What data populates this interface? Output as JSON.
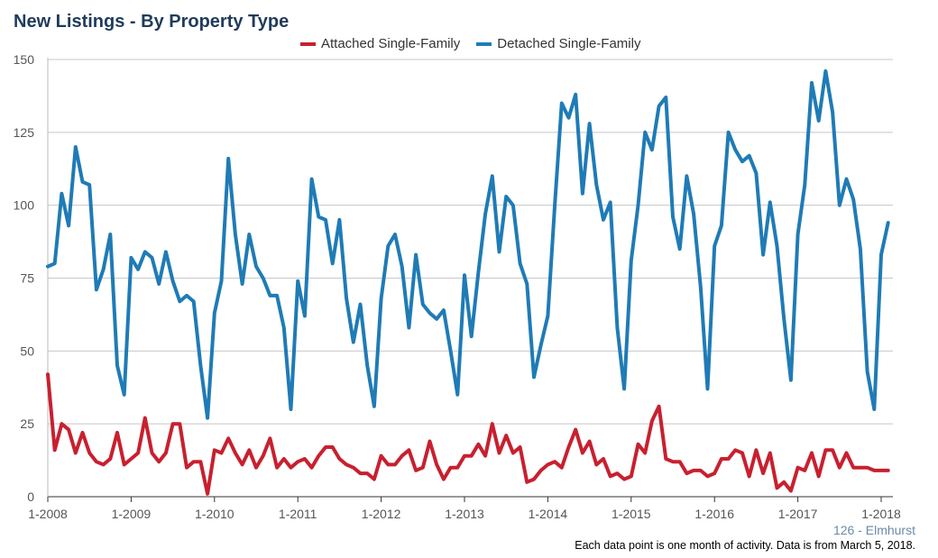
{
  "chart_data": {
    "type": "line",
    "title": "New Listings - By Property Type",
    "ylim": [
      0,
      150
    ],
    "yticks": [
      0,
      25,
      50,
      75,
      100,
      125,
      150
    ],
    "x_start": "1-2008",
    "x_ticks": [
      "1-2008",
      "1-2009",
      "1-2010",
      "1-2011",
      "1-2012",
      "1-2013",
      "1-2014",
      "1-2015",
      "1-2016",
      "1-2017",
      "1-2018"
    ],
    "grid": true,
    "legend_position": "top-center",
    "series": [
      {
        "name": "Attached Single-Family",
        "color": "#c8202f",
        "values": [
          42,
          16,
          25,
          23,
          15,
          22,
          15,
          12,
          11,
          13,
          22,
          11,
          13,
          15,
          27,
          15,
          12,
          15,
          25,
          25,
          10,
          12,
          12,
          1,
          16,
          15,
          20,
          15,
          11,
          16,
          10,
          14,
          20,
          10,
          13,
          10,
          12,
          13,
          10,
          14,
          17,
          17,
          13,
          11,
          10,
          8,
          8,
          6,
          14,
          11,
          11,
          14,
          16,
          9,
          10,
          19,
          11,
          6,
          10,
          10,
          14,
          14,
          18,
          14,
          25,
          15,
          21,
          15,
          17,
          5,
          6,
          9,
          11,
          12,
          10,
          17,
          23,
          15,
          19,
          11,
          13,
          7,
          8,
          6,
          7,
          18,
          15,
          26,
          31,
          13,
          12,
          12,
          8,
          9,
          9,
          7,
          8,
          13,
          13,
          16,
          15,
          7,
          16,
          8,
          15,
          3,
          5,
          2,
          10,
          9,
          15,
          7,
          16,
          16,
          10,
          15,
          10,
          10,
          10,
          9,
          9,
          9
        ]
      },
      {
        "name": "Detached Single-Family",
        "color": "#1f7bb6",
        "values": [
          79,
          80,
          104,
          93,
          120,
          108,
          107,
          71,
          78,
          90,
          45,
          35,
          82,
          78,
          84,
          82,
          73,
          84,
          74,
          67,
          69,
          67,
          45,
          27,
          63,
          74,
          116,
          90,
          73,
          90,
          79,
          75,
          69,
          69,
          58,
          30,
          74,
          62,
          109,
          96,
          95,
          80,
          95,
          68,
          53,
          66,
          45,
          31,
          68,
          86,
          90,
          79,
          58,
          83,
          66,
          63,
          61,
          64,
          50,
          35,
          76,
          55,
          77,
          97,
          110,
          84,
          103,
          100,
          80,
          73,
          41,
          52,
          62,
          100,
          135,
          130,
          138,
          104,
          128,
          107,
          95,
          101,
          58,
          37,
          81,
          100,
          125,
          119,
          134,
          137,
          96,
          85,
          110,
          97,
          72,
          37,
          86,
          93,
          125,
          119,
          115,
          117,
          111,
          83,
          101,
          86,
          61,
          40,
          90,
          107,
          142,
          129,
          146,
          132,
          100,
          109,
          102,
          85,
          43,
          30,
          83,
          94
        ]
      }
    ]
  },
  "footer": {
    "id_label": "126 - Elmhurst",
    "note": "Each data point is one month of activity. Data is from March 5, 2018."
  }
}
